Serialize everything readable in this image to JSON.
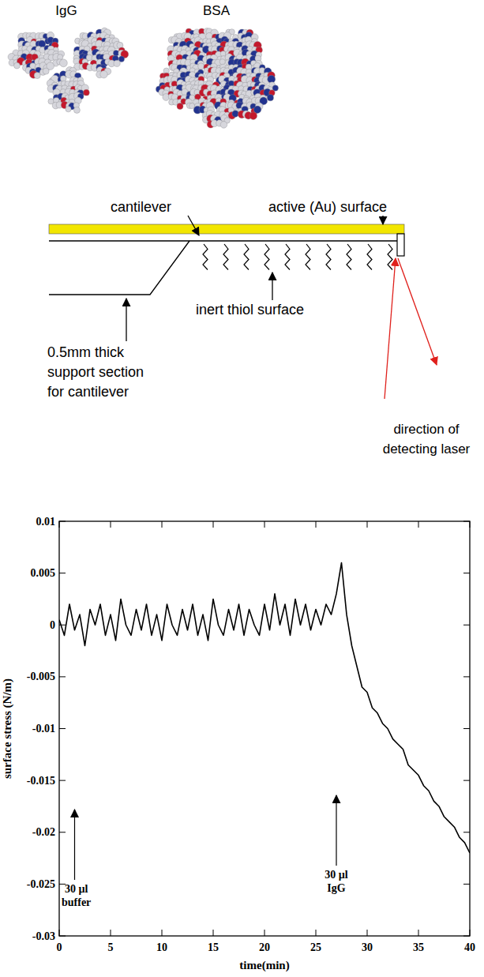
{
  "molecules": [
    {
      "label": "IgG"
    },
    {
      "label": "BSA"
    }
  ],
  "diagram": {
    "cantilever": "cantilever",
    "active_surface": "active (Au) surface",
    "thiol_surface": "inert thiol surface",
    "support": [
      "0.5mm thick",
      "support section",
      "for cantilever"
    ],
    "laser": [
      "direction of",
      "detecting laser"
    ]
  },
  "chart_data": {
    "type": "line",
    "x_label": "time(min)",
    "y_label": "surface stress (N/m)",
    "x": [
      0,
      0.5,
      1,
      1.5,
      2,
      2.5,
      3,
      3.5,
      4,
      4.5,
      5,
      5.5,
      6,
      6.5,
      7,
      7.5,
      8,
      8.5,
      9,
      9.5,
      10,
      10.5,
      11,
      11.5,
      12,
      12.5,
      13,
      13.5,
      14,
      14.5,
      15,
      15.5,
      16,
      16.5,
      17,
      17.5,
      18,
      18.5,
      19,
      19.5,
      20,
      20.5,
      21,
      21.5,
      22,
      22.5,
      23,
      23.5,
      24,
      24.5,
      25,
      25.5,
      26,
      26.5,
      27,
      27.5,
      28,
      28.5,
      29,
      29.5,
      30,
      30.5,
      31,
      31.5,
      32,
      32.5,
      33,
      33.5,
      34,
      34.5,
      35,
      35.5,
      36,
      36.5,
      37,
      37.5,
      38,
      38.5,
      39,
      39.5,
      40
    ],
    "series": [
      {
        "color": "#000000",
        "values": [
          0.0005,
          -0.001,
          0.002,
          -0.0005,
          0.001,
          -0.002,
          0.0015,
          0,
          0.002,
          -0.001,
          0.001,
          -0.0015,
          0.0025,
          0,
          -0.001,
          0.0015,
          -0.0005,
          0.002,
          -0.001,
          0.001,
          -0.0015,
          0.002,
          0,
          -0.001,
          0.0015,
          -0.0005,
          0.002,
          -0.001,
          0.001,
          -0.0015,
          0.0025,
          0,
          -0.001,
          0.0015,
          -0.0005,
          0.002,
          -0.001,
          0.0015,
          0,
          -0.001,
          0.002,
          -0.0005,
          0.003,
          0,
          0.002,
          -0.001,
          0.0025,
          0,
          0.002,
          -0.0005,
          0.0015,
          0,
          0.002,
          0.001,
          0.003,
          0.006,
          0.001,
          -0.002,
          -0.004,
          -0.006,
          -0.0065,
          -0.008,
          -0.0085,
          -0.0095,
          -0.01,
          -0.011,
          -0.0115,
          -0.012,
          -0.0135,
          -0.014,
          -0.0145,
          -0.0155,
          -0.016,
          -0.017,
          -0.0175,
          -0.0185,
          -0.019,
          -0.0195,
          -0.0205,
          -0.021,
          -0.022
        ]
      }
    ],
    "xlim": [
      0,
      40
    ],
    "ylim": [
      -0.03,
      0.01
    ],
    "xticks": [
      0,
      5,
      10,
      15,
      20,
      25,
      30,
      35,
      40
    ],
    "yticks": [
      -0.03,
      -0.025,
      -0.02,
      -0.015,
      -0.01,
      -0.005,
      0,
      0.005,
      0.01
    ],
    "annotations": [
      {
        "text": "30 µl buffer",
        "x": 1.5
      },
      {
        "text": "30 µl IgG",
        "x": 27
      }
    ]
  }
}
